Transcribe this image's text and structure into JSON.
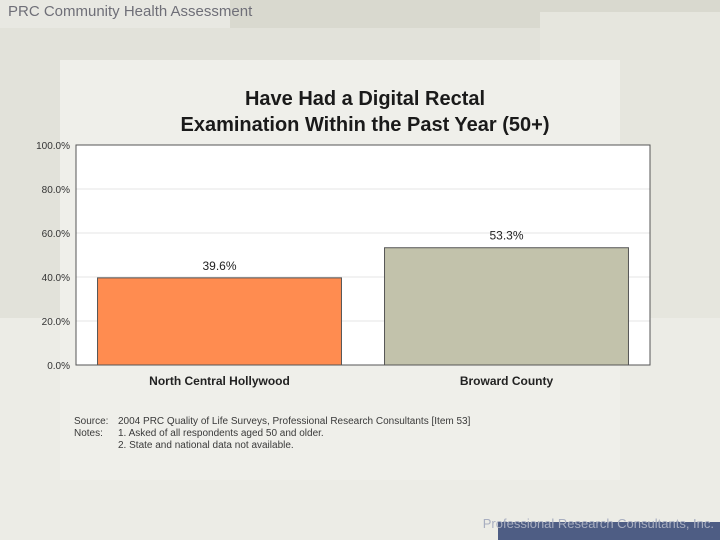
{
  "deck_title": "PRC Community Health Assessment",
  "footer": "Professional Research Consultants, Inc.",
  "colors": {
    "bar_north": "#ff8c50",
    "bar_broward": "#c2c2ab",
    "plot_bg": "#ffffff",
    "footer_bar": "#4e5d84"
  },
  "chart_data": {
    "type": "bar",
    "title_lines": [
      "Have Had a Digital Rectal",
      "Examination Within the Past Year (50+)"
    ],
    "categories": [
      "North Central Hollywood",
      "Broward County"
    ],
    "values": [
      39.6,
      53.3
    ],
    "value_labels": [
      "39.6%",
      "53.3%"
    ],
    "ylim": [
      0,
      100
    ],
    "yticks": [
      "100.0%",
      "80.0%",
      "60.0%",
      "40.0%",
      "20.0%",
      "0.0%"
    ],
    "ytick_values": [
      100,
      80,
      60,
      40,
      20,
      0
    ],
    "grid": true,
    "legend": "none"
  },
  "notes": [
    {
      "key": "Source:",
      "text": "2004 PRC Quality of Life Surveys, Professional Research Consultants [Item 53]"
    },
    {
      "key": "Notes:",
      "text": "1. Asked of all respondents aged 50 and older."
    },
    {
      "key": "",
      "text": "2. State and national data not available."
    }
  ]
}
